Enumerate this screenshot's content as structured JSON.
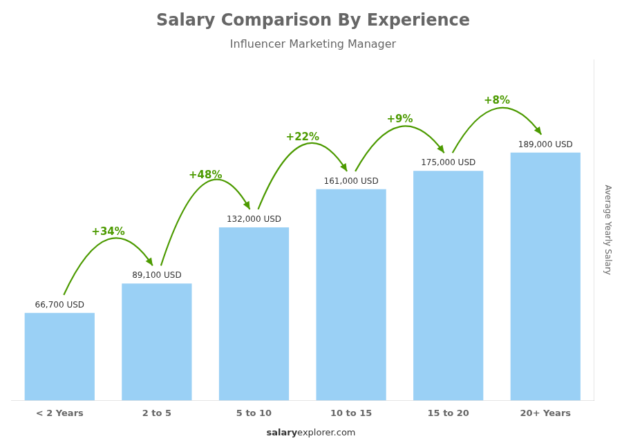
{
  "chart_data": {
    "type": "bar",
    "title": "Salary Comparison By Experience",
    "subtitle": "Influencer Marketing Manager",
    "ylabel": "Average Yearly Salary",
    "categories": [
      "< 2 Years",
      "2 to 5",
      "5 to 10",
      "10 to 15",
      "15 to 20",
      "20+ Years"
    ],
    "values": [
      66700,
      89100,
      132000,
      161000,
      175000,
      189000
    ],
    "value_labels": [
      "66,700 USD",
      "89,100 USD",
      "132,000 USD",
      "161,000 USD",
      "175,000 USD",
      "189,000 USD"
    ],
    "data_labels": true,
    "pct_changes": [
      "+34%",
      "+48%",
      "+22%",
      "+9%",
      "+8%"
    ],
    "annotations": [
      "salary",
      "explorer.com"
    ],
    "ylim": [
      0,
      260000
    ],
    "tick_labels": "x",
    "grid": false
  }
}
